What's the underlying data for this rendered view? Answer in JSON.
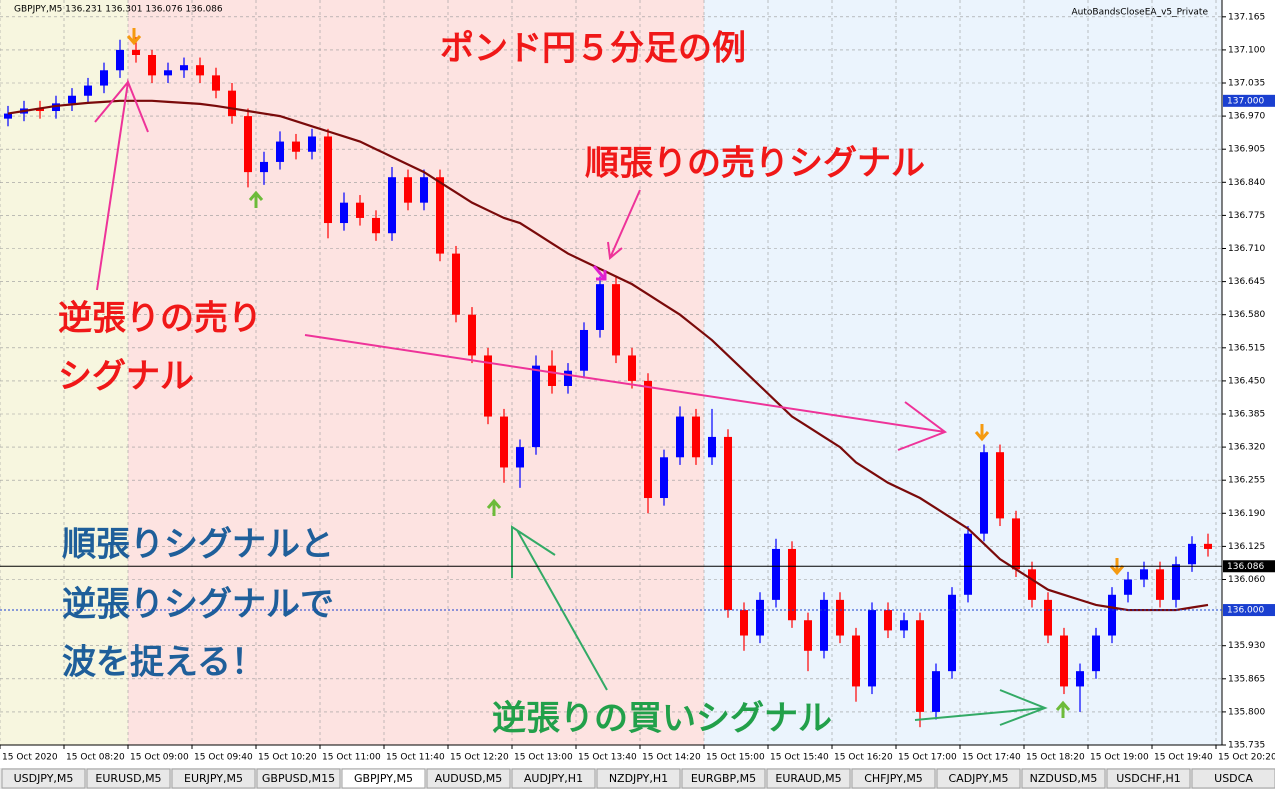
{
  "chart_data": {
    "type": "candlestick",
    "header": "GBPJPY,M5  136.231 136.301 136.076 136.086",
    "expert": "AutoBandsCloseEA_v5_Private",
    "up_color": "#0000ff",
    "down_color": "#ff0000",
    "grid": true,
    "ylim": [
      135.735,
      137.198
    ],
    "yticks": [
      137.165,
      {
        "value": 137.1,
        "label": "137.100"
      },
      137.035,
      {
        "value": 136.97,
        "label": "136.970"
      },
      136.905,
      {
        "value": 136.84,
        "label": "136.840"
      },
      136.775,
      {
        "value": 136.71,
        "label": "136.710"
      },
      136.645,
      {
        "value": 136.58,
        "label": "136.580"
      },
      136.515,
      {
        "value": 136.45,
        "label": "136.450"
      },
      136.385,
      {
        "value": 136.32,
        "label": "136.320"
      },
      136.255,
      {
        "value": 136.19,
        "label": "136.190"
      },
      136.125,
      {
        "value": 136.06,
        "label": "136.060"
      },
      {
        "value": 135.93,
        "label": "135.930"
      },
      135.865,
      {
        "value": 135.8,
        "label": "135.800"
      },
      135.735
    ],
    "xlim": [
      0,
      76.375
    ],
    "xticks": [
      {
        "value": 0,
        "label": "15 Oct 2020"
      },
      {
        "value": 4,
        "label": "15 Oct 08:20"
      },
      {
        "value": 8,
        "label": "15 Oct 09:00"
      },
      {
        "value": 12,
        "label": "15 Oct 09:40"
      },
      {
        "value": 16,
        "label": "15 Oct 10:20"
      },
      {
        "value": 20,
        "label": "15 Oct 11:00"
      },
      {
        "value": 24,
        "label": "15 Oct 11:40"
      },
      {
        "value": 28,
        "label": "15 Oct 12:20"
      },
      {
        "value": 32,
        "label": "15 Oct 13:00"
      },
      {
        "value": 36,
        "label": "15 Oct 13:40"
      },
      {
        "value": 40,
        "label": "15 Oct 14:20"
      },
      {
        "value": 44,
        "label": "15 Oct 15:00"
      },
      {
        "value": 48,
        "label": "15 Oct 15:40"
      },
      {
        "value": 52,
        "label": "15 Oct 16:20"
      },
      {
        "value": 56,
        "label": "15 Oct 17:00"
      },
      {
        "value": 60,
        "label": "15 Oct 17:40"
      },
      {
        "value": 64,
        "label": "15 Oct 18:20"
      },
      {
        "value": 68,
        "label": "15 Oct 19:00"
      },
      {
        "value": 72,
        "label": "15 Oct 19:40"
      },
      {
        "value": 76,
        "label": "15 Oct 20:20"
      }
    ],
    "open": [
      136.965,
      136.975,
      136.985,
      136.98,
      136.995,
      137.01,
      137.03,
      137.06,
      137.1,
      137.09,
      137.05,
      137.06,
      137.07,
      137.05,
      137.02,
      136.97,
      136.86,
      136.88,
      136.92,
      136.9,
      136.93,
      136.76,
      136.8,
      136.77,
      136.74,
      136.85,
      136.8,
      136.85,
      136.7,
      136.58,
      136.5,
      136.38,
      136.28,
      136.32,
      136.48,
      136.44,
      136.47,
      136.55,
      136.64,
      136.5,
      136.45,
      136.22,
      136.3,
      136.38,
      136.3,
      136.34,
      136.0,
      135.95,
      136.02,
      136.12,
      135.98,
      135.92,
      136.02,
      135.95,
      135.85,
      136.0,
      135.96,
      135.98,
      135.8,
      135.88,
      136.03,
      136.15,
      136.31,
      136.18,
      136.08,
      136.02,
      135.95,
      135.85,
      135.88,
      135.95,
      136.03,
      136.06,
      136.08,
      136.02,
      136.09,
      136.13
    ],
    "high": [
      136.99,
      137.0,
      137.0,
      137.01,
      137.025,
      137.045,
      137.075,
      137.12,
      137.125,
      137.1,
      137.075,
      137.085,
      137.085,
      137.065,
      137.035,
      136.985,
      136.9,
      136.94,
      136.935,
      136.945,
      136.945,
      136.82,
      136.815,
      136.785,
      136.87,
      136.865,
      136.865,
      136.865,
      136.715,
      136.595,
      136.515,
      136.395,
      136.335,
      136.5,
      136.51,
      136.485,
      136.565,
      136.655,
      136.655,
      136.515,
      136.465,
      136.315,
      136.4,
      136.395,
      136.395,
      136.355,
      136.015,
      136.035,
      136.14,
      136.135,
      135.995,
      136.035,
      136.035,
      135.965,
      136.015,
      136.015,
      135.995,
      135.995,
      135.895,
      136.045,
      136.165,
      136.325,
      136.325,
      136.195,
      136.095,
      136.035,
      135.965,
      135.895,
      135.965,
      136.045,
      136.075,
      136.095,
      136.095,
      136.105,
      136.145,
      136.15
    ],
    "low": [
      136.95,
      136.96,
      136.965,
      136.965,
      136.98,
      136.995,
      137.015,
      137.045,
      137.075,
      137.035,
      137.035,
      137.045,
      137.035,
      137.005,
      136.955,
      136.83,
      136.835,
      136.865,
      136.885,
      136.885,
      136.73,
      136.745,
      136.755,
      136.725,
      136.725,
      136.785,
      136.785,
      136.685,
      136.565,
      136.485,
      136.365,
      136.25,
      136.24,
      136.305,
      136.425,
      136.425,
      136.455,
      136.535,
      136.485,
      136.435,
      136.19,
      136.205,
      136.285,
      136.285,
      136.285,
      135.985,
      135.92,
      135.935,
      136.005,
      135.965,
      135.88,
      135.905,
      135.935,
      135.82,
      135.835,
      135.945,
      135.945,
      135.77,
      135.785,
      135.865,
      136.015,
      136.135,
      136.165,
      136.065,
      136.005,
      135.935,
      135.835,
      135.8,
      135.865,
      135.935,
      136.015,
      136.045,
      136.005,
      136.005,
      136.075,
      136.105
    ],
    "close": [
      136.975,
      136.985,
      136.98,
      136.995,
      137.01,
      137.03,
      137.06,
      137.1,
      137.09,
      137.05,
      137.06,
      137.07,
      137.05,
      137.02,
      136.97,
      136.86,
      136.88,
      136.92,
      136.9,
      136.93,
      136.76,
      136.8,
      136.77,
      136.74,
      136.85,
      136.8,
      136.85,
      136.7,
      136.58,
      136.5,
      136.38,
      136.28,
      136.32,
      136.48,
      136.44,
      136.47,
      136.55,
      136.64,
      136.5,
      136.45,
      136.22,
      136.3,
      136.38,
      136.3,
      136.34,
      136.0,
      135.95,
      136.02,
      136.12,
      135.98,
      135.92,
      136.02,
      135.95,
      135.85,
      136.0,
      135.96,
      135.98,
      135.8,
      135.88,
      136.03,
      136.15,
      136.31,
      136.18,
      136.08,
      136.02,
      135.95,
      135.85,
      135.88,
      135.95,
      136.03,
      136.06,
      136.08,
      136.02,
      136.09,
      136.13,
      136.12
    ],
    "ma": {
      "color": "#7a0a0a",
      "values": [
        136.975,
        136.98,
        136.985,
        136.99,
        136.993,
        136.996,
        136.998,
        137.0,
        137.0,
        137.0,
        136.998,
        136.996,
        136.994,
        136.99,
        136.985,
        136.98,
        136.975,
        136.97,
        136.96,
        136.95,
        136.94,
        136.93,
        136.92,
        136.905,
        136.89,
        136.875,
        136.86,
        136.84,
        136.82,
        136.8,
        136.785,
        136.77,
        136.76,
        136.74,
        136.72,
        136.7,
        136.685,
        136.67,
        136.655,
        136.64,
        136.62,
        136.6,
        136.58,
        136.555,
        136.53,
        136.5,
        136.47,
        136.44,
        136.41,
        136.38,
        136.36,
        136.34,
        136.32,
        136.29,
        136.27,
        136.25,
        136.235,
        136.22,
        136.2,
        136.18,
        136.16,
        136.13,
        136.1,
        136.08,
        136.06,
        136.04,
        136.03,
        136.02,
        136.01,
        136.005,
        136.0,
        136.0,
        136.0,
        136.0,
        136.005,
        136.01
      ]
    },
    "price_lines": [
      {
        "value": 137,
        "label": "137.000",
        "color": "#1a3fd0",
        "style": "none"
      },
      {
        "value": 136.086,
        "color": "#000000",
        "style": "solid"
      },
      {
        "value": 136,
        "label": "136.000",
        "color": "#1a3fd0",
        "style": "dotted"
      }
    ],
    "annotations": [
      {
        "text": "ポンド円５分足の例",
        "color": "#f01818"
      },
      {
        "text": "順張りの売りシグナル",
        "color": "#f01818"
      },
      {
        "text": "逆張りの売り",
        "color": "#f01818"
      },
      {
        "text": "シグナル",
        "color": "#f01818"
      },
      {
        "text": "順張りシグナルと",
        "color": "#1f5f9a"
      },
      {
        "text": "逆張りシグナルで",
        "color": "#1f5f9a"
      },
      {
        "text": "波を捉える！",
        "color": "#1f5f9a"
      },
      {
        "text": "逆張りの買いシグナル",
        "color": "#22a04a"
      }
    ],
    "tabs": [
      "USDJPY,M5",
      "EURUSD,M5",
      "EURJPY,M5",
      "GBPUSD,M15",
      "GBPJPY,M5",
      "AUDUSD,M5",
      "AUDJPY,H1",
      "NZDJPY,H1",
      "EURGBP,M5",
      "EURAUD,M5",
      "CHFJPY,M5",
      "CADJPY,M5",
      "NZDUSD,M5",
      "USDCHF,H1",
      "USDCA"
    ],
    "active_tab": "GBPJPY,M5"
  }
}
